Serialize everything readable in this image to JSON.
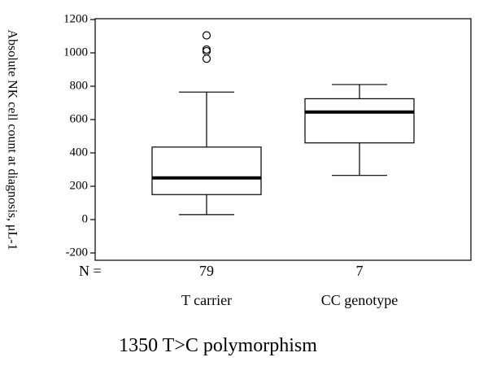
{
  "chart_data": {
    "type": "box",
    "title": "",
    "xlabel": "1350 T>C polymorphism",
    "ylabel": "Absolute NK cell count at diagnosis, μL-1",
    "ylim": [
      -200,
      1200
    ],
    "yticks": [
      -200,
      0,
      200,
      400,
      600,
      800,
      1000,
      1200
    ],
    "ytick_labels": [
      "-200",
      "0",
      "200",
      "400",
      "600",
      "800",
      "1000",
      "1200"
    ],
    "n_prefix": "N =",
    "categories": [
      "T carrier",
      "CC genotype"
    ],
    "n_values": [
      "79",
      "7"
    ],
    "boxes": [
      {
        "category": "T carrier",
        "n": 79,
        "whisker_low": 30,
        "q1": 150,
        "median": 250,
        "q3": 435,
        "whisker_high": 765,
        "outliers": [
          965,
          1010,
          1020,
          1105
        ]
      },
      {
        "category": "CC genotype",
        "n": 7,
        "whisker_low": 265,
        "q1": 460,
        "median": 645,
        "q3": 725,
        "whisker_high": 810,
        "outliers": []
      }
    ],
    "grid": false,
    "legend": "none",
    "colors": {
      "axis": "#000000",
      "box_fill": "#ffffff",
      "median": "#000000"
    }
  }
}
